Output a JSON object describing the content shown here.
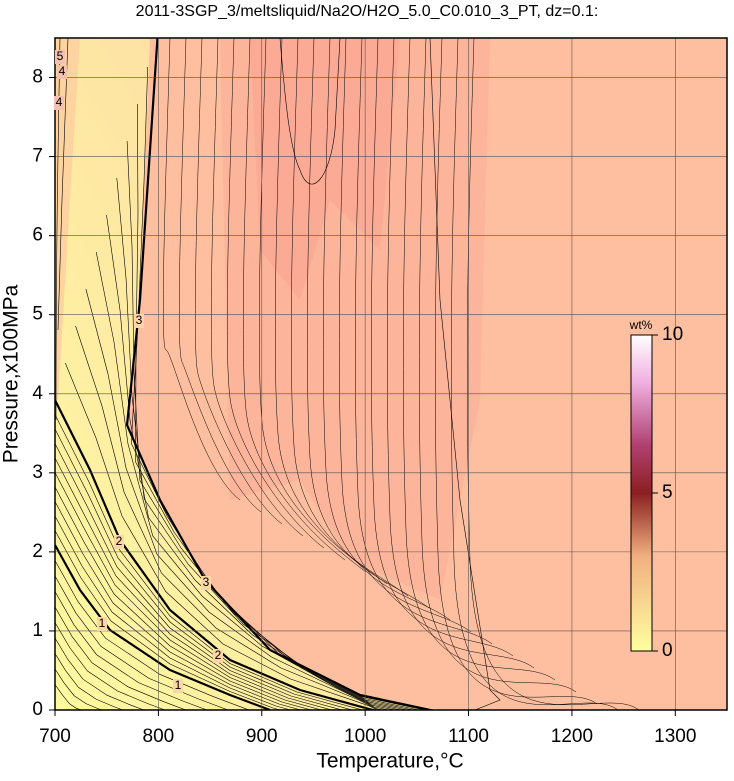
{
  "chart_data": {
    "type": "contour",
    "title": "2011-3SGP_3/meltsliquid/Na2O/H2O_5.0_C0.010_3_PT, dz=0.1:",
    "x_label": "Temperature,°C",
    "y_label": "Pressure,x100MPa",
    "xlim": [
      700,
      1350
    ],
    "xticks": [
      700,
      800,
      900,
      1000,
      1100,
      1200,
      1300
    ],
    "ylim": [
      0,
      8.5
    ],
    "yticks": [
      0,
      1,
      2,
      3,
      4,
      5,
      6,
      7,
      8
    ],
    "grid": true,
    "contour_levels": [
      1,
      2,
      3,
      4,
      5
    ],
    "colorbar": {
      "label": "wt%",
      "lim": [
        0,
        10
      ],
      "ticks": [
        0,
        5,
        10
      ]
    }
  }
}
